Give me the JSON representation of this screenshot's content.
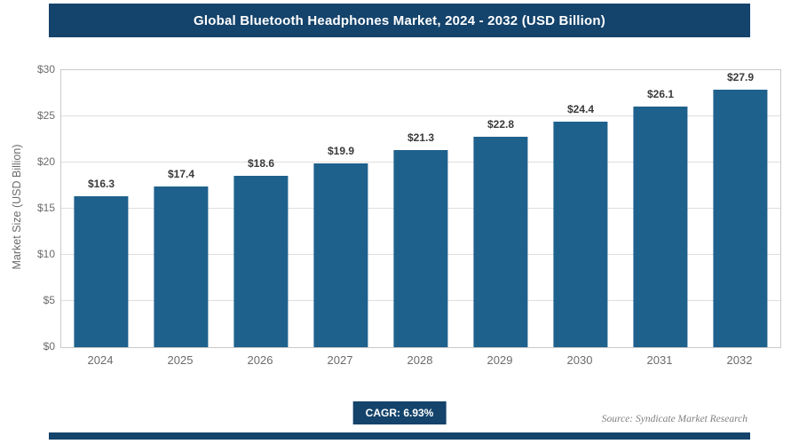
{
  "title": "Global Bluetooth Headphones Market, 2024 - 2032 (USD Billion)",
  "colors": {
    "header_bg": "#14436b",
    "bar": "#1f618d",
    "badge_bg": "#14436b",
    "bottom_bar_bg": "#14436b"
  },
  "chart_data": {
    "type": "bar",
    "title": "Global Bluetooth Headphones Market, 2024 - 2032 (USD Billion)",
    "categories": [
      "2024",
      "2025",
      "2026",
      "2027",
      "2028",
      "2029",
      "2030",
      "2031",
      "2032"
    ],
    "values": [
      16.3,
      17.4,
      18.6,
      19.9,
      21.3,
      22.8,
      24.4,
      26.1,
      27.9
    ],
    "value_labels": [
      "$16.3",
      "$17.4",
      "$18.6",
      "$19.9",
      "$21.3",
      "$22.8",
      "$24.4",
      "$26.1",
      "$27.9"
    ],
    "xlabel": "",
    "ylabel": "Market Size (USD Billion)",
    "ylim": [
      0,
      30
    ],
    "ytick_step": 5,
    "ytick_labels": [
      "$0",
      "$5",
      "$10",
      "$15",
      "$20",
      "$25",
      "$30"
    ],
    "grid": true,
    "legend": "none"
  },
  "footer": {
    "cagr_label": "CAGR: 6.93%",
    "source": "Source: Syndicate Market Research"
  }
}
